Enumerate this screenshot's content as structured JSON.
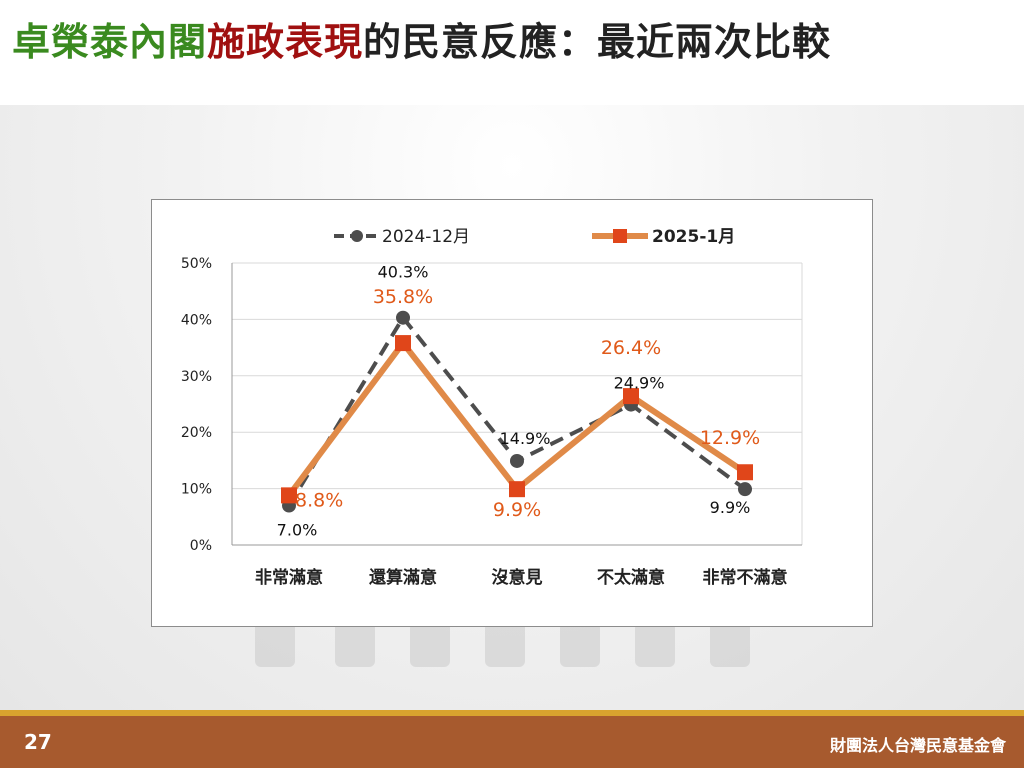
{
  "slide": {
    "title_part1": "卓榮泰內閣",
    "title_part2": "施政表現",
    "title_part3": "的民意反應：最近兩次比較",
    "title_colors": [
      "#3a8a1f",
      "#a01010",
      "#222222"
    ],
    "page_number": "27",
    "organization": "財團法人台灣民意基金會"
  },
  "chart_data": {
    "type": "line",
    "categories": [
      "非常滿意",
      "還算滿意",
      "沒意見",
      "不太滿意",
      "非常不滿意"
    ],
    "series": [
      {
        "name": "2024-12月",
        "values": [
          7.0,
          40.3,
          14.9,
          24.9,
          9.9
        ],
        "labels": [
          "7.0%",
          "40.3%",
          "14.9%",
          "24.9%",
          "9.9%"
        ],
        "color": "#4d4d4d",
        "style": "dashed",
        "marker": "circle"
      },
      {
        "name": "2025-1月",
        "values": [
          8.8,
          35.8,
          9.9,
          26.4,
          12.9
        ],
        "labels": [
          "8.8%",
          "35.8%",
          "9.9%",
          "26.4%",
          "12.9%"
        ],
        "color": "#e08a48",
        "marker_color": "#e0461a",
        "label_color": "#e05a1a",
        "style": "solid",
        "marker": "square"
      }
    ],
    "ylim": [
      0,
      50
    ],
    "yticks": [
      "0%",
      "10%",
      "20%",
      "30%",
      "40%",
      "50%"
    ],
    "ytick_values": [
      0,
      10,
      20,
      30,
      40,
      50
    ],
    "grid": true,
    "legend_position": "top"
  }
}
